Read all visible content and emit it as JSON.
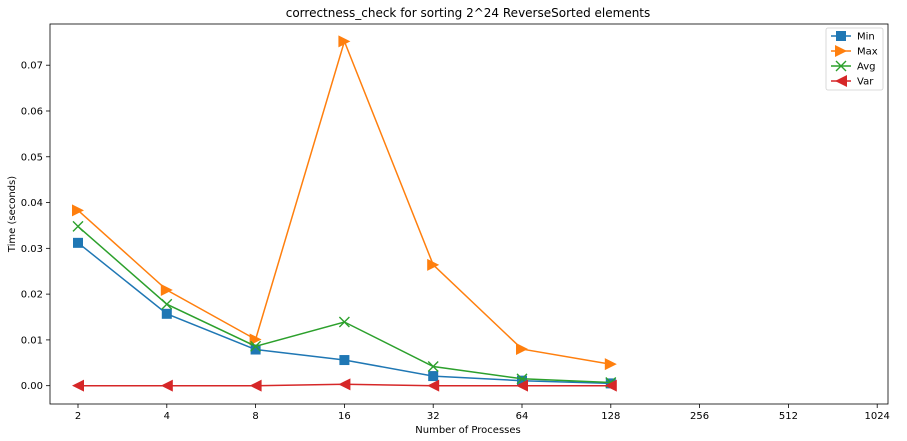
{
  "chart_data": {
    "type": "line",
    "title": "correctness_check for sorting 2^24 ReverseSorted elements",
    "xlabel": "Number of Processes",
    "ylabel": "Time (seconds)",
    "x_scale": "log2",
    "x_ticks": [
      2,
      4,
      8,
      16,
      32,
      64,
      128,
      256,
      512,
      1024
    ],
    "x_tick_labels": [
      "2",
      "4",
      "8",
      "16",
      "32",
      "64",
      "128",
      "256",
      "512",
      "1024"
    ],
    "xlim": [
      2,
      1024
    ],
    "ylim": [
      -0.004,
      0.079
    ],
    "y_ticks": [
      0.0,
      0.01,
      0.02,
      0.03,
      0.04,
      0.05,
      0.06,
      0.07
    ],
    "y_tick_labels": [
      "0.00",
      "0.01",
      "0.02",
      "0.03",
      "0.04",
      "0.05",
      "0.06",
      "0.07"
    ],
    "grid": false,
    "legend_position": "top-right",
    "x": [
      2,
      4,
      8,
      16,
      32,
      64,
      128
    ],
    "series": [
      {
        "name": "Min",
        "color": "#1f77b4",
        "marker": "square",
        "values": [
          0.0312,
          0.0157,
          0.0079,
          0.0056,
          0.0021,
          0.0011,
          0.0005
        ]
      },
      {
        "name": "Max",
        "color": "#ff7f0e",
        "marker": "triangle-right",
        "values": [
          0.0383,
          0.0209,
          0.0101,
          0.0752,
          0.0264,
          0.008,
          0.0047
        ]
      },
      {
        "name": "Avg",
        "color": "#2ca02c",
        "marker": "x",
        "values": [
          0.0348,
          0.0178,
          0.0086,
          0.0139,
          0.0042,
          0.0015,
          0.0007
        ]
      },
      {
        "name": "Var",
        "color": "#d62728",
        "marker": "triangle-left",
        "values": [
          0.0,
          0.0,
          0.0,
          0.0003,
          0.0,
          0.0,
          0.0
        ]
      }
    ]
  }
}
